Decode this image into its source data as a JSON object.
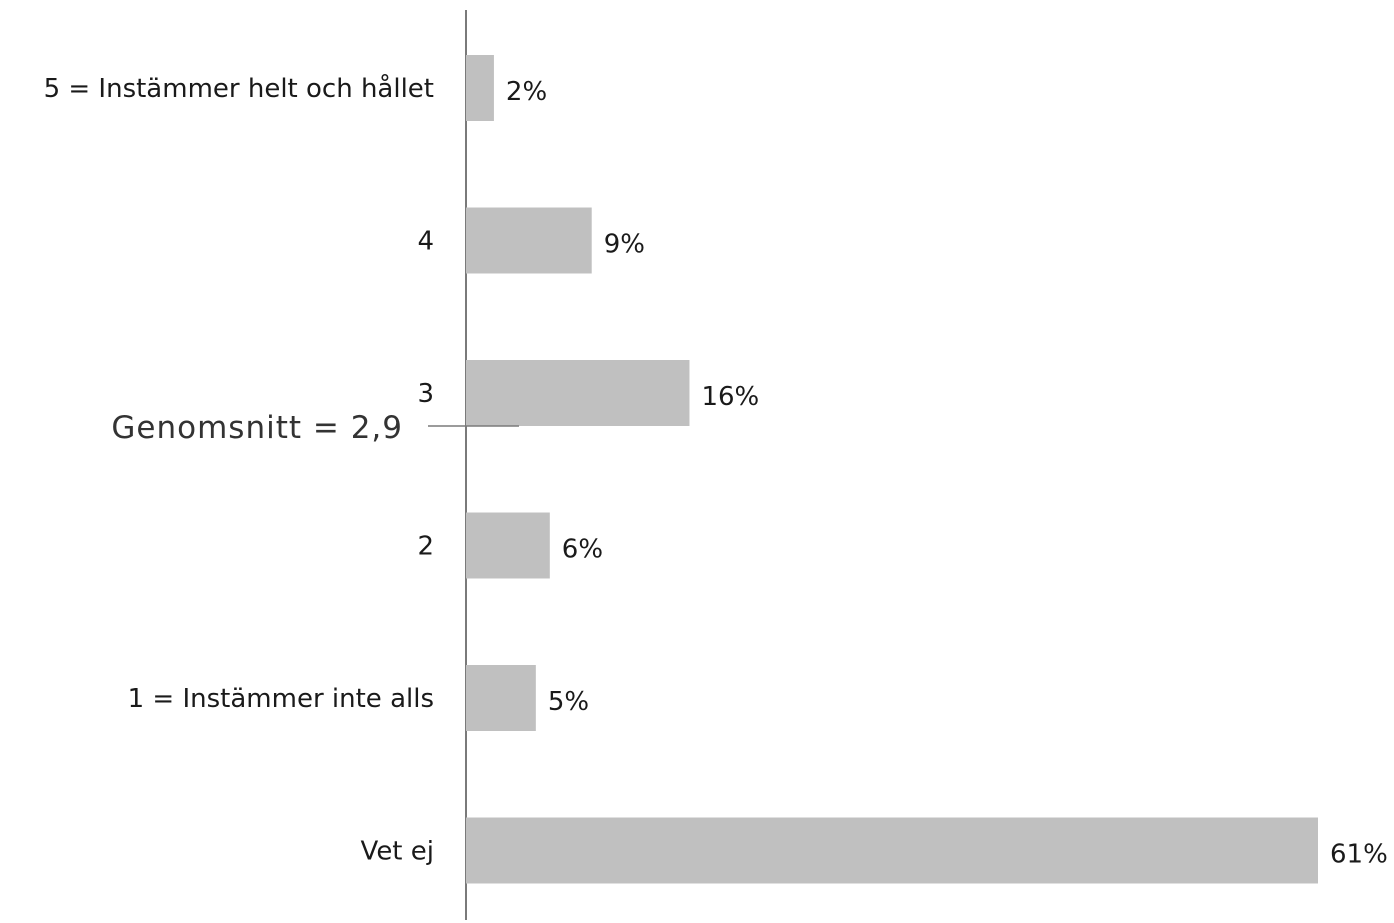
{
  "chart_data": {
    "type": "bar",
    "orientation": "horizontal",
    "categories": [
      "5 = Instämmer helt och hållet",
      "4",
      "3",
      "2",
      "1 = Instämmer inte alls",
      "Vet ej"
    ],
    "values": [
      2,
      9,
      16,
      6,
      5,
      61
    ],
    "value_labels": [
      "2%",
      "9%",
      "16%",
      "6%",
      "5%",
      "61%"
    ],
    "unit": "%",
    "xlim": [
      0,
      61
    ],
    "grid": false,
    "legend": "none",
    "bar_color": "#c0c0c0",
    "axis_color": "#7a7a7a",
    "annotation": {
      "text": "Genomsnitt = 2,9",
      "value": 2.9
    }
  }
}
